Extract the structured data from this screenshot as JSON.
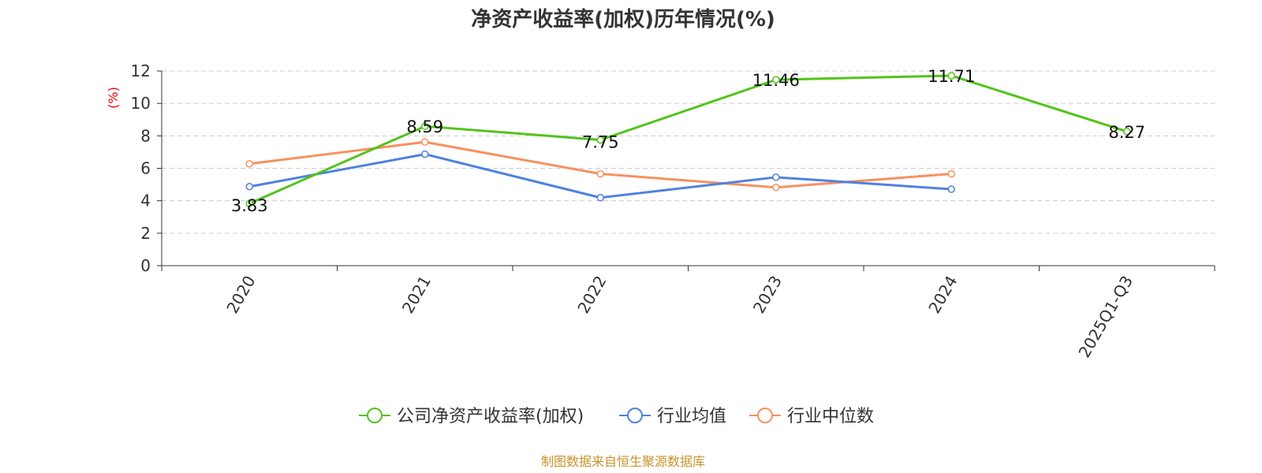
{
  "chart_data": {
    "type": "line",
    "title": "净资产收益率(加权)历年情况(%)",
    "ylabel": "(%)",
    "xlabel": "",
    "categories": [
      "2020",
      "2021",
      "2022",
      "2023",
      "2024",
      "2025Q1-Q3"
    ],
    "ylim": [
      0,
      12
    ],
    "yticks": [
      0,
      2,
      4,
      6,
      8,
      10,
      12
    ],
    "grid": true,
    "legend_position": "bottom",
    "series": [
      {
        "name": "公司净资产收益率(加权)",
        "color": "#52c41a",
        "values": [
          3.83,
          8.59,
          7.75,
          11.46,
          11.71,
          8.27
        ],
        "labels": [
          "3.83",
          "8.59",
          "7.75",
          "11.46",
          "11.71",
          "8.27"
        ]
      },
      {
        "name": "行业均值",
        "color": "#4f81e0",
        "values": [
          4.87,
          6.87,
          4.19,
          5.45,
          4.71,
          null
        ]
      },
      {
        "name": "行业中位数",
        "color": "#f7915e",
        "values": [
          6.28,
          7.62,
          5.66,
          4.82,
          5.66,
          null
        ]
      }
    ],
    "source": "制图数据来自恒生聚源数据库",
    "colors": {
      "ylabel": "#e8000b",
      "source": "#c8932c",
      "axis": "#333333",
      "grid": "#cccccc"
    }
  }
}
